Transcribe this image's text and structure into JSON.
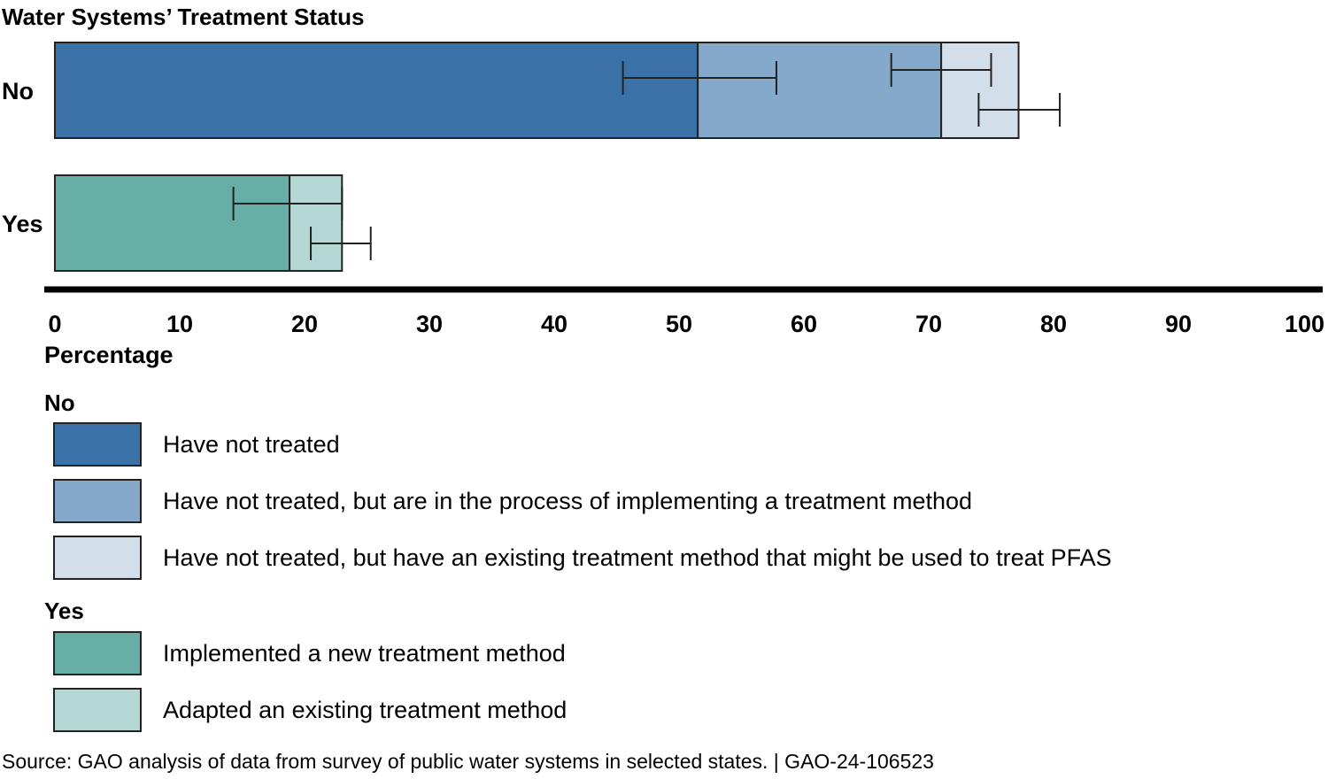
{
  "title": "Water Systems’ Treatment Status",
  "colors": {
    "have_not_treated": "#3b73a8",
    "in_process": "#84a9ca",
    "existing_method": "#d2dfea",
    "implemented_new": "#67aea7",
    "adapted_existing": "#b5d8d4"
  },
  "chart_data": {
    "type": "bar",
    "orientation": "horizontal",
    "stacked": true,
    "title": "Water Systems’ Treatment Status",
    "xlabel": "Percentage",
    "ylabel": "",
    "xlim": [
      0,
      100
    ],
    "xticks": [
      0,
      10,
      20,
      30,
      40,
      50,
      60,
      70,
      80,
      90,
      100
    ],
    "categories": [
      "No",
      "Yes"
    ],
    "series": [
      {
        "name": "Have not treated",
        "category": "No",
        "value": 51.5,
        "error_low": 45.5,
        "error_high": 57.8,
        "color": "#3b73a8"
      },
      {
        "name": "Have not treated, but are in the process of implementing a treatment method",
        "category": "No",
        "value": 19.5,
        "error_low": 67.0,
        "error_high": 75.0,
        "color": "#84a9ca"
      },
      {
        "name": "Have not treated, but have an existing treatment method that might be used to treat PFAS",
        "category": "No",
        "value": 6.2,
        "error_low": 74.0,
        "error_high": 80.5,
        "color": "#d2dfea"
      },
      {
        "name": "Implemented a new treatment method",
        "category": "Yes",
        "value": 18.8,
        "error_low": 14.3,
        "error_high": 23.0,
        "color": "#67aea7"
      },
      {
        "name": "Adapted an existing treatment method",
        "category": "Yes",
        "value": 4.2,
        "error_low": 20.5,
        "error_high": 25.3,
        "color": "#b5d8d4"
      }
    ]
  },
  "legend": {
    "groups": [
      {
        "title": "No",
        "items": [
          {
            "label": "Have not treated",
            "color": "#3b73a8"
          },
          {
            "label": "Have not treated, but are in the process of implementing a treatment method",
            "color": "#84a9ca"
          },
          {
            "label": "Have not treated, but have an existing treatment method that might be used to treat PFAS",
            "color": "#d2dfea"
          }
        ]
      },
      {
        "title": "Yes",
        "items": [
          {
            "label": "Implemented a new treatment method",
            "color": "#67aea7"
          },
          {
            "label": "Adapted an existing treatment method",
            "color": "#b5d8d4"
          }
        ]
      }
    ]
  },
  "source": "Source: GAO analysis of data from survey of public water systems in selected states.  |  GAO-24-106523"
}
